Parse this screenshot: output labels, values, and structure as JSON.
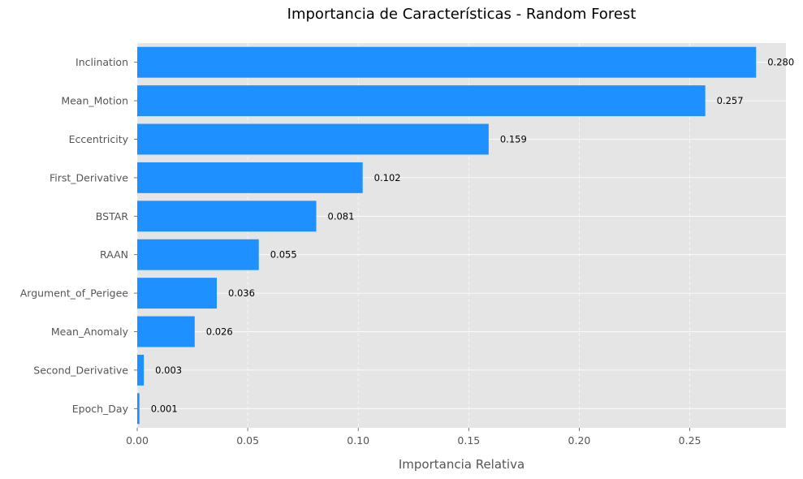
{
  "chart_data": {
    "type": "bar",
    "orientation": "horizontal",
    "title": "Importancia de Características - Random Forest",
    "xlabel": "Importancia Relativa",
    "ylabel": "",
    "xlim": [
      0,
      0.2935
    ],
    "xticks": [
      0.0,
      0.05,
      0.1,
      0.15,
      0.2,
      0.25
    ],
    "xtick_labels": [
      "0.00",
      "0.05",
      "0.10",
      "0.15",
      "0.20",
      "0.25"
    ],
    "categories": [
      "Inclination",
      "Mean_Motion",
      "Eccentricity",
      "First_Derivative",
      "BSTAR",
      "RAAN",
      "Argument_of_Perigee",
      "Mean_Anomaly",
      "Second_Derivative",
      "Epoch_Day"
    ],
    "values": [
      0.28,
      0.257,
      0.159,
      0.102,
      0.081,
      0.055,
      0.036,
      0.026,
      0.003,
      0.001
    ],
    "value_labels": [
      "0.280",
      "0.257",
      "0.159",
      "0.102",
      "0.081",
      "0.055",
      "0.036",
      "0.026",
      "0.003",
      "0.001"
    ],
    "bar_color": "#1e90ff",
    "background_color": "#e5e5e5",
    "grid": true
  }
}
